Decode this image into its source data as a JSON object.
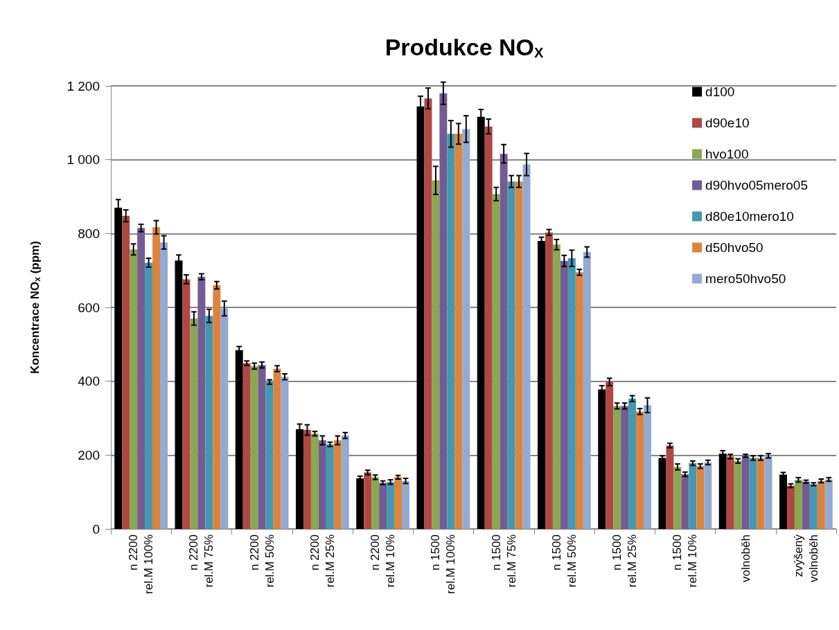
{
  "chart_data": {
    "type": "bar",
    "title": "Produkce NO$_{X}$",
    "ylabel": "Koncentrace NO$_{x}$ (ppm)",
    "categories": [
      "n 2200\nrel.M 100%",
      "n 2200\nrel.M 75%",
      "n 2200\nrel.M 50%",
      "n 2200\nrel.M 25%",
      "n 2200\nrel.M 10%",
      "n 1500\nrel.M 100%",
      "n 1500\nrel.M 75%",
      "n 1500\nrel.M 50%",
      "n 1500\nrel.M 25%",
      "n 1500\nrel.M 10%",
      "volnoběh",
      "zvýšený\nvolnoběh"
    ],
    "series": [
      {
        "name": "d100",
        "color": "#000000",
        "values": [
          870,
          727,
          484,
          270,
          137,
          1144,
          1116,
          780,
          378,
          192,
          204,
          147
        ],
        "errors": [
          22,
          15,
          10,
          14,
          6,
          28,
          20,
          10,
          10,
          6,
          8,
          6
        ]
      },
      {
        "name": "d90e10",
        "color": "#b04743",
        "values": [
          848,
          676,
          449,
          268,
          153,
          1166,
          1090,
          803,
          398,
          226,
          196,
          117
        ],
        "errors": [
          16,
          12,
          6,
          14,
          6,
          28,
          20,
          8,
          10,
          6,
          6,
          5
        ]
      },
      {
        "name": "hvo100",
        "color": "#8aa752",
        "values": [
          757,
          570,
          441,
          258,
          140,
          944,
          907,
          770,
          333,
          168,
          184,
          133
        ],
        "errors": [
          15,
          18,
          8,
          6,
          6,
          38,
          18,
          14,
          8,
          8,
          6,
          6
        ]
      },
      {
        "name": "d90hvo05mero05",
        "color": "#735b94",
        "values": [
          815,
          683,
          444,
          240,
          125,
          1180,
          1016,
          726,
          333,
          148,
          198,
          128
        ],
        "errors": [
          10,
          8,
          8,
          12,
          5,
          30,
          25,
          15,
          8,
          6,
          4,
          4
        ]
      },
      {
        "name": "d80e10mero10",
        "color": "#4299b1",
        "values": [
          721,
          577,
          398,
          229,
          127,
          1070,
          941,
          733,
          353,
          178,
          192,
          121
        ],
        "errors": [
          12,
          18,
          6,
          6,
          6,
          36,
          16,
          22,
          8,
          6,
          6,
          4
        ]
      },
      {
        "name": "d50hvo50",
        "color": "#dc843c",
        "values": [
          817,
          660,
          434,
          240,
          140,
          1070,
          941,
          695,
          318,
          170,
          192,
          130
        ],
        "errors": [
          18,
          10,
          8,
          12,
          5,
          28,
          16,
          8,
          8,
          6,
          6,
          5
        ]
      },
      {
        "name": "mero50hvo50",
        "color": "#93aad3",
        "values": [
          776,
          597,
          412,
          253,
          130,
          1083,
          987,
          750,
          335,
          180,
          198,
          134
        ],
        "errors": [
          18,
          20,
          8,
          8,
          7,
          36,
          30,
          14,
          20,
          6,
          6,
          5
        ]
      }
    ],
    "ylim": [
      0,
      1200
    ],
    "yticks": [
      0,
      200,
      400,
      600,
      800,
      {
        "value": 1000,
        "label": "1 000"
      },
      {
        "value": 1200,
        "label": "1 200"
      }
    ],
    "grid": "y",
    "legend": "top right"
  }
}
